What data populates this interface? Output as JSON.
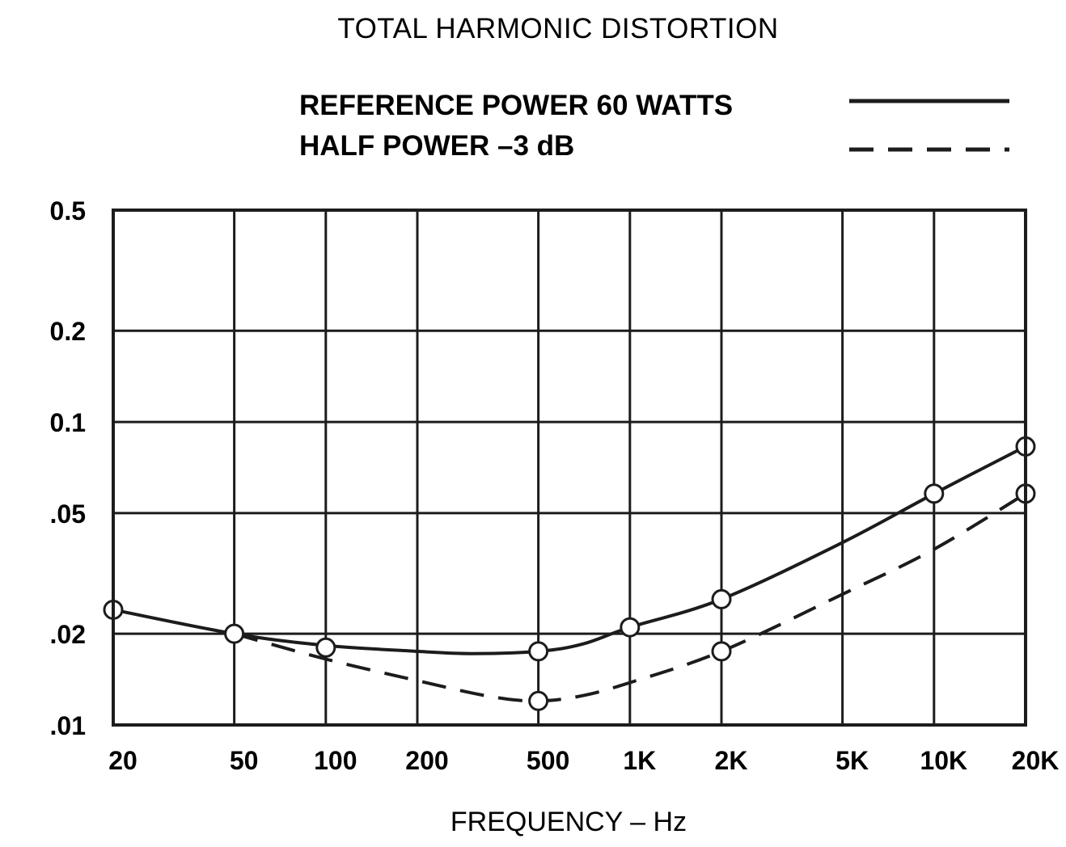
{
  "chart_data": {
    "type": "line",
    "title": "TOTAL HARMONIC DISTORTION",
    "xlabel": "FREQUENCY – Hz",
    "ylabel": "",
    "x_scale": "log",
    "y_scale": "log",
    "xlim": [
      20,
      20000
    ],
    "ylim": [
      0.01,
      0.5
    ],
    "grid": true,
    "legend_position": "top-right",
    "x_ticks": [
      {
        "value": 20,
        "label": "20"
      },
      {
        "value": 50,
        "label": "50"
      },
      {
        "value": 100,
        "label": "100"
      },
      {
        "value": 200,
        "label": "200"
      },
      {
        "value": 500,
        "label": "500"
      },
      {
        "value": 1000,
        "label": "1K"
      },
      {
        "value": 2000,
        "label": "2K"
      },
      {
        "value": 5000,
        "label": "5K"
      },
      {
        "value": 10000,
        "label": "10K"
      },
      {
        "value": 20000,
        "label": "20K"
      }
    ],
    "y_ticks": [
      {
        "value": 0.01,
        "label": ".01"
      },
      {
        "value": 0.02,
        "label": ".02"
      },
      {
        "value": 0.05,
        "label": ".05"
      },
      {
        "value": 0.1,
        "label": "0.1"
      },
      {
        "value": 0.2,
        "label": "0.2"
      },
      {
        "value": 0.5,
        "label": "0.5"
      }
    ],
    "series": [
      {
        "name": "REFERENCE POWER 60 WATTS",
        "line_style": "solid",
        "markers": [
          {
            "x": 20,
            "y": 0.024
          },
          {
            "x": 50,
            "y": 0.02
          },
          {
            "x": 100,
            "y": 0.018
          },
          {
            "x": 500,
            "y": 0.0175
          },
          {
            "x": 1000,
            "y": 0.021
          },
          {
            "x": 2000,
            "y": 0.026
          },
          {
            "x": 10000,
            "y": 0.058
          },
          {
            "x": 20000,
            "y": 0.083
          }
        ],
        "curve": [
          {
            "x": 20,
            "y": 0.024
          },
          {
            "x": 50,
            "y": 0.02
          },
          {
            "x": 100,
            "y": 0.0183
          },
          {
            "x": 200,
            "y": 0.0175
          },
          {
            "x": 300,
            "y": 0.0172
          },
          {
            "x": 500,
            "y": 0.0175
          },
          {
            "x": 700,
            "y": 0.0185
          },
          {
            "x": 1000,
            "y": 0.021
          },
          {
            "x": 2000,
            "y": 0.026
          },
          {
            "x": 5000,
            "y": 0.04
          },
          {
            "x": 10000,
            "y": 0.058
          },
          {
            "x": 20000,
            "y": 0.083
          }
        ]
      },
      {
        "name": "HALF POWER –3 dB",
        "line_style": "dashed",
        "markers": [
          {
            "x": 500,
            "y": 0.012
          },
          {
            "x": 2000,
            "y": 0.0175
          },
          {
            "x": 20000,
            "y": 0.058
          }
        ],
        "curve": [
          {
            "x": 50,
            "y": 0.02
          },
          {
            "x": 100,
            "y": 0.0165
          },
          {
            "x": 200,
            "y": 0.014
          },
          {
            "x": 350,
            "y": 0.0124
          },
          {
            "x": 500,
            "y": 0.012
          },
          {
            "x": 700,
            "y": 0.0125
          },
          {
            "x": 1000,
            "y": 0.0138
          },
          {
            "x": 2000,
            "y": 0.0175
          },
          {
            "x": 5000,
            "y": 0.027
          },
          {
            "x": 10000,
            "y": 0.038
          },
          {
            "x": 20000,
            "y": 0.058
          }
        ]
      }
    ]
  }
}
